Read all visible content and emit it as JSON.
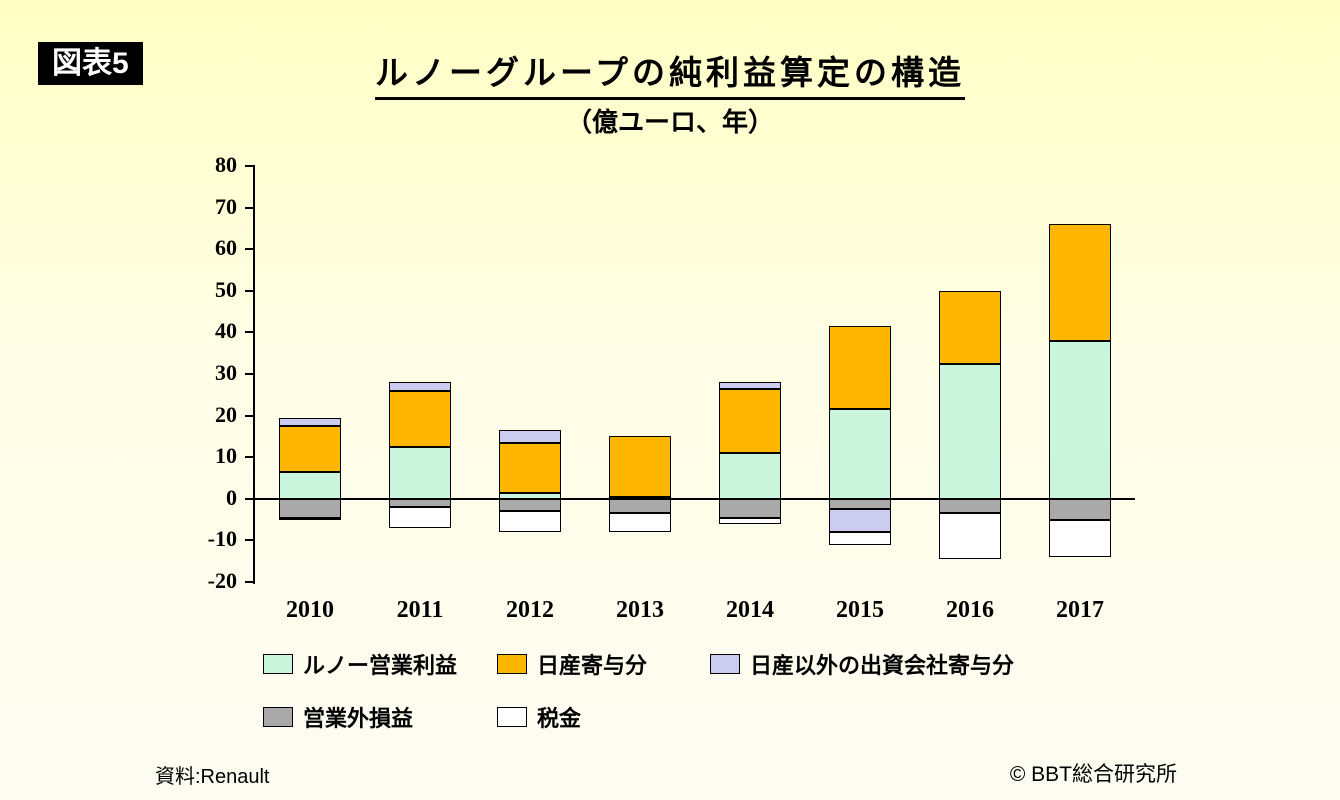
{
  "header": {
    "badge": "図表5",
    "title": "ルノーグループの純利益算定の構造",
    "subtitle": "（億ユーロ、年）"
  },
  "footer": {
    "source": "資料:Renault",
    "copyright": "© BBT総合研究所"
  },
  "chart_data": {
    "type": "bar",
    "stacked": true,
    "title": "ルノーグループの純利益算定の構造",
    "unit_label": "（億ユーロ、年）",
    "categories": [
      "2010",
      "2011",
      "2012",
      "2013",
      "2014",
      "2015",
      "2016",
      "2017"
    ],
    "series": [
      {
        "name": "ルノー営業利益",
        "color": "#c9f5dc",
        "values": [
          6.5,
          12.5,
          1.5,
          0.5,
          11,
          21.5,
          32.5,
          38
        ]
      },
      {
        "name": "日産寄与分",
        "color": "#ffb600",
        "values": [
          11,
          13.5,
          12,
          14.5,
          15.5,
          20,
          17.5,
          28
        ]
      },
      {
        "name": "日産以外の出資会社寄与分",
        "color": "#ccccf0",
        "values": [
          2,
          2,
          3,
          0,
          1.5,
          -5.5,
          0,
          0
        ]
      },
      {
        "name": "営業外損益",
        "color": "#a9a9a9",
        "values": [
          -4.5,
          -2,
          -3,
          -3.5,
          -4.5,
          -2.5,
          -3.5,
          -5
        ]
      },
      {
        "name": "税金",
        "color": "#ffffff",
        "values": [
          -0.5,
          -5,
          -5,
          -4.5,
          -1.5,
          -3,
          -11,
          -9
        ]
      }
    ],
    "positive_stack_order": [
      0,
      1,
      2
    ],
    "negative_stack_order": [
      3,
      2,
      4
    ],
    "ylim": [
      -20,
      80
    ],
    "ytick_step": 10,
    "grid": false,
    "legend_position": "bottom",
    "legend_rows": [
      [
        0,
        1,
        2
      ],
      [
        3,
        4
      ]
    ]
  }
}
